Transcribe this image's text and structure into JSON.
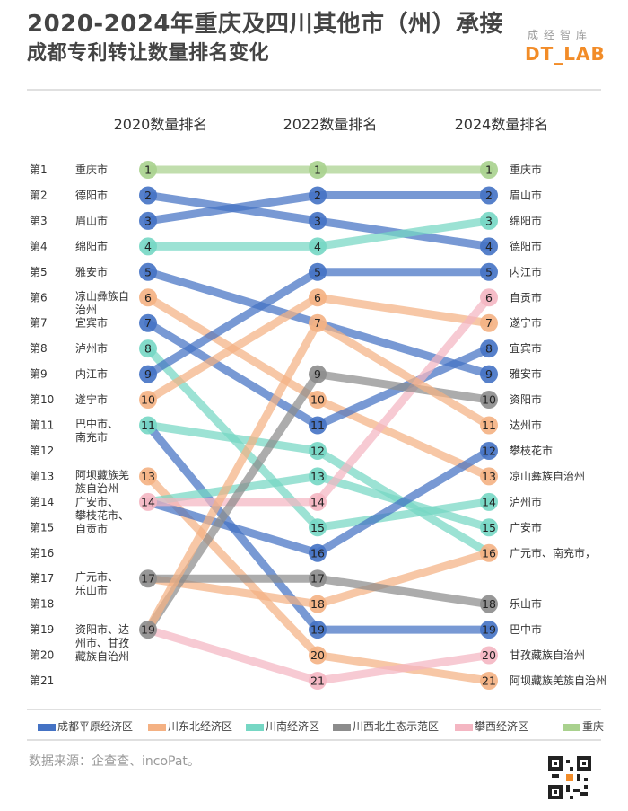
{
  "title": {
    "line1": "2020-2024年重庆及四川其他市（州）承接",
    "line2": "成都专利转让数量排名变化"
  },
  "brand": {
    "cn": "成经智库",
    "en": "DT_LAB"
  },
  "source": "数据来源：企查查、incoPat。",
  "chart_data": {
    "type": "bump",
    "columns": [
      "2020数量排名",
      "2022数量排名",
      "2024数量排名"
    ],
    "rank_labels": [
      "第1",
      "第2",
      "第3",
      "第4",
      "第5",
      "第6",
      "第7",
      "第8",
      "第9",
      "第10",
      "第11",
      "第12",
      "第13",
      "第14",
      "第15",
      "第16",
      "第17",
      "第18",
      "第19",
      "第20",
      "第21"
    ],
    "groups": [
      {
        "name": "成都平原经济区",
        "color": "#4472c4"
      },
      {
        "name": "川东北经济区",
        "color": "#f4b183"
      },
      {
        "name": "川南经济区",
        "color": "#76d7c4"
      },
      {
        "name": "川西北生态示范区",
        "color": "#8c8c8c"
      },
      {
        "name": "攀西经济区",
        "color": "#f4b6c2"
      },
      {
        "name": "重庆",
        "color": "#a9d18e"
      }
    ],
    "left_labels": [
      {
        "rank": 1,
        "text": [
          "重庆市"
        ]
      },
      {
        "rank": 2,
        "text": [
          "德阳市"
        ]
      },
      {
        "rank": 3,
        "text": [
          "眉山市"
        ]
      },
      {
        "rank": 4,
        "text": [
          "绵阳市"
        ]
      },
      {
        "rank": 5,
        "text": [
          "雅安市"
        ]
      },
      {
        "rank": 6,
        "text": [
          "凉山彝族自",
          "治州"
        ]
      },
      {
        "rank": 7,
        "text": [
          "宜宾市"
        ]
      },
      {
        "rank": 8,
        "text": [
          "泸州市"
        ]
      },
      {
        "rank": 9,
        "text": [
          "内江市"
        ]
      },
      {
        "rank": 10,
        "text": [
          "遂宁市"
        ]
      },
      {
        "rank": 11,
        "text": [
          "巴中市、",
          "南充市"
        ]
      },
      {
        "rank": 13,
        "text": [
          "阿坝藏族羌",
          "族自治州"
        ]
      },
      {
        "rank": 14,
        "text": [
          "广安市、",
          "攀枝花市、",
          "自贡市"
        ]
      },
      {
        "rank": 17,
        "text": [
          "广元市、",
          "乐山市"
        ]
      },
      {
        "rank": 19,
        "text": [
          "资阳市、达",
          "州市、甘孜",
          "藏族自治州"
        ]
      }
    ],
    "right_labels": [
      {
        "rank": 1,
        "text": "重庆市"
      },
      {
        "rank": 2,
        "text": "眉山市"
      },
      {
        "rank": 3,
        "text": "绵阳市"
      },
      {
        "rank": 4,
        "text": "德阳市"
      },
      {
        "rank": 5,
        "text": "内江市"
      },
      {
        "rank": 6,
        "text": "自贡市"
      },
      {
        "rank": 7,
        "text": "遂宁市"
      },
      {
        "rank": 8,
        "text": "宜宾市"
      },
      {
        "rank": 9,
        "text": "雅安市"
      },
      {
        "rank": 10,
        "text": "资阳市"
      },
      {
        "rank": 11,
        "text": "达州市"
      },
      {
        "rank": 12,
        "text": "攀枝花市"
      },
      {
        "rank": 13,
        "text": "凉山彝族自治州"
      },
      {
        "rank": 14,
        "text": "泸州市"
      },
      {
        "rank": 15,
        "text": "广安市"
      },
      {
        "rank": 16,
        "text": "广元市、南充市，"
      },
      {
        "rank": 18,
        "text": "乐山市"
      },
      {
        "rank": 19,
        "text": "巴中市"
      },
      {
        "rank": 20,
        "text": "甘孜藏族自治州"
      },
      {
        "rank": 21,
        "text": "阿坝藏族羌族自治州"
      }
    ],
    "lines": [
      {
        "city": "重庆市",
        "group": "重庆",
        "ranks": [
          1,
          1,
          1
        ]
      },
      {
        "city": "德阳市",
        "group": "成都平原经济区",
        "ranks": [
          2,
          3,
          4
        ]
      },
      {
        "city": "眉山市",
        "group": "成都平原经济区",
        "ranks": [
          3,
          2,
          2
        ]
      },
      {
        "city": "绵阳市",
        "group": "川南经济区",
        "ranks": [
          4,
          4,
          3
        ]
      },
      {
        "city": "雅安市",
        "group": "成都平原经济区",
        "ranks": [
          5,
          7,
          9
        ]
      },
      {
        "city": "凉山彝族自治州",
        "group": "川东北经济区",
        "ranks": [
          6,
          10,
          13
        ]
      },
      {
        "city": "宜宾市",
        "group": "成都平原经济区",
        "ranks": [
          7,
          11,
          8
        ]
      },
      {
        "city": "泸州市",
        "group": "川南经济区",
        "ranks": [
          8,
          15,
          14
        ]
      },
      {
        "city": "内江市",
        "group": "成都平原经济区",
        "ranks": [
          9,
          5,
          5
        ]
      },
      {
        "city": "遂宁市",
        "group": "川东北经济区",
        "ranks": [
          10,
          6,
          7
        ]
      },
      {
        "city": "南充市",
        "group": "川南经济区",
        "ranks": [
          11,
          12,
          16
        ]
      },
      {
        "city": "巴中市",
        "group": "成都平原经济区",
        "ranks": [
          11,
          19,
          19
        ]
      },
      {
        "city": "阿坝藏族羌族自治州",
        "group": "川东北经济区",
        "ranks": [
          13,
          20,
          21
        ]
      },
      {
        "city": "广安市",
        "group": "川南经济区",
        "ranks": [
          14,
          13,
          15
        ]
      },
      {
        "city": "攀枝花市",
        "group": "成都平原经济区",
        "ranks": [
          14,
          16,
          12
        ]
      },
      {
        "city": "自贡市",
        "group": "攀西经济区",
        "ranks": [
          14,
          14,
          6
        ]
      },
      {
        "city": "广元市",
        "group": "川东北经济区",
        "ranks": [
          17,
          18,
          16
        ]
      },
      {
        "city": "乐山市",
        "group": "川西北生态示范区",
        "ranks": [
          17,
          17,
          18
        ]
      },
      {
        "city": "资阳市",
        "group": "川西北生态示范区",
        "ranks": [
          19,
          9,
          10
        ]
      },
      {
        "city": "达州市",
        "group": "川东北经济区",
        "ranks": [
          19,
          7,
          11
        ]
      },
      {
        "city": "甘孜藏族自治州",
        "group": "攀西经济区",
        "ranks": [
          19,
          21,
          20
        ]
      }
    ],
    "column_markers": [
      {
        "rank": 1,
        "group": "重庆"
      },
      {
        "rank": 2,
        "group": "成都平原经济区"
      },
      {
        "rank": 3,
        "group": "成都平原经济区"
      },
      {
        "rank": 4,
        "group": "川南经济区"
      },
      {
        "rank": 5,
        "group": "成都平原经济区"
      },
      {
        "rank": 6,
        "group": "川东北经济区"
      },
      {
        "rank": 7,
        "group": "成都平原经济区"
      },
      {
        "rank": 8,
        "group": "川南经济区"
      },
      {
        "rank": 9,
        "group": "成都平原经济区"
      },
      {
        "rank": 10,
        "group": "川东北经济区"
      },
      {
        "rank": 11,
        "group": "川南经济区"
      },
      {
        "rank": 13,
        "group": "川东北经济区"
      },
      {
        "rank": 14,
        "group": "攀西经济区"
      },
      {
        "rank": 17,
        "group": "川西北生态示范区"
      },
      {
        "rank": 19,
        "group": "川西北生态示范区"
      }
    ],
    "column_markers_2022": [
      {
        "rank": 1,
        "group": "重庆"
      },
      {
        "rank": 2,
        "group": "成都平原经济区"
      },
      {
        "rank": 3,
        "group": "成都平原经济区"
      },
      {
        "rank": 4,
        "group": "川南经济区"
      },
      {
        "rank": 5,
        "group": "成都平原经济区"
      },
      {
        "rank": 6,
        "group": "川东北经济区"
      },
      {
        "rank": 7,
        "group": "川东北经济区"
      },
      {
        "rank": 9,
        "group": "川西北生态示范区"
      },
      {
        "rank": 10,
        "group": "川东北经济区"
      },
      {
        "rank": 11,
        "group": "成都平原经济区"
      },
      {
        "rank": 12,
        "group": "川南经济区"
      },
      {
        "rank": 13,
        "group": "川南经济区"
      },
      {
        "rank": 14,
        "group": "攀西经济区"
      },
      {
        "rank": 15,
        "group": "川南经济区"
      },
      {
        "rank": 16,
        "group": "成都平原经济区"
      },
      {
        "rank": 17,
        "group": "川西北生态示范区"
      },
      {
        "rank": 18,
        "group": "川东北经济区"
      },
      {
        "rank": 19,
        "group": "成都平原经济区"
      },
      {
        "rank": 20,
        "group": "川东北经济区"
      },
      {
        "rank": 21,
        "group": "攀西经济区"
      }
    ],
    "column_markers_2024": [
      {
        "rank": 1,
        "group": "重庆"
      },
      {
        "rank": 2,
        "group": "成都平原经济区"
      },
      {
        "rank": 3,
        "group": "川南经济区"
      },
      {
        "rank": 4,
        "group": "成都平原经济区"
      },
      {
        "rank": 5,
        "group": "成都平原经济区"
      },
      {
        "rank": 6,
        "group": "攀西经济区"
      },
      {
        "rank": 7,
        "group": "川东北经济区"
      },
      {
        "rank": 8,
        "group": "成都平原经济区"
      },
      {
        "rank": 9,
        "group": "成都平原经济区"
      },
      {
        "rank": 10,
        "group": "川西北生态示范区"
      },
      {
        "rank": 11,
        "group": "川东北经济区"
      },
      {
        "rank": 12,
        "group": "成都平原经济区"
      },
      {
        "rank": 13,
        "group": "川东北经济区"
      },
      {
        "rank": 14,
        "group": "川南经济区"
      },
      {
        "rank": 15,
        "group": "川南经济区"
      },
      {
        "rank": 16,
        "group": "川东北经济区"
      },
      {
        "rank": 18,
        "group": "川西北生态示范区"
      },
      {
        "rank": 19,
        "group": "成都平原经济区"
      },
      {
        "rank": 20,
        "group": "攀西经济区"
      },
      {
        "rank": 21,
        "group": "川东北经济区"
      }
    ]
  }
}
